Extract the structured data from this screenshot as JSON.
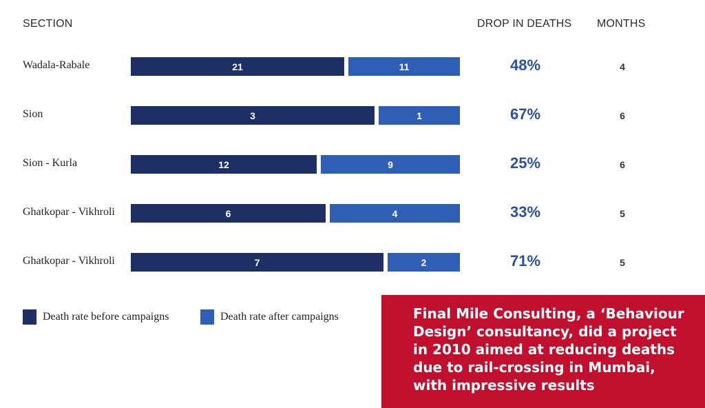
{
  "headers": {
    "section": "SECTION",
    "drop": "DROP IN DEATHS",
    "months": "MONTHS"
  },
  "colors": {
    "before": "#1e2f66",
    "after": "#2f5fb4",
    "drop_text": "#2c4f9e",
    "callout_bg": "#c0102e"
  },
  "chart_data": {
    "type": "bar",
    "orientation": "horizontal",
    "stacked": true,
    "categories": [
      "Wadala-Rabale",
      "Sion",
      "Sion - Kurla",
      "Ghatkopar - Vikhroli",
      "Ghatkopar - Vikhroli"
    ],
    "series": [
      {
        "name": "Death rate before campaigns",
        "values": [
          21,
          3,
          12,
          6,
          7
        ]
      },
      {
        "name": "Death rate after campaigns",
        "values": [
          11,
          1,
          9,
          4,
          2
        ]
      }
    ],
    "drop_in_deaths": [
      "48%",
      "67%",
      "25%",
      "33%",
      "71%"
    ],
    "months": [
      "4",
      "6",
      "6",
      "5",
      "5"
    ],
    "legend": [
      "Death rate before campaigns",
      "Death rate after campaigns"
    ],
    "legend_position": "bottom-left",
    "grid": false
  },
  "legend": {
    "before": "Death rate before campaigns",
    "after": "Death rate after campaigns"
  },
  "callout": {
    "text": "Final Mile Consulting, a ‘Behaviour Design’ consultancy, did a project in 2010 aimed at reducing deaths due to rail-crossing in Mumbai, with impressive results"
  }
}
